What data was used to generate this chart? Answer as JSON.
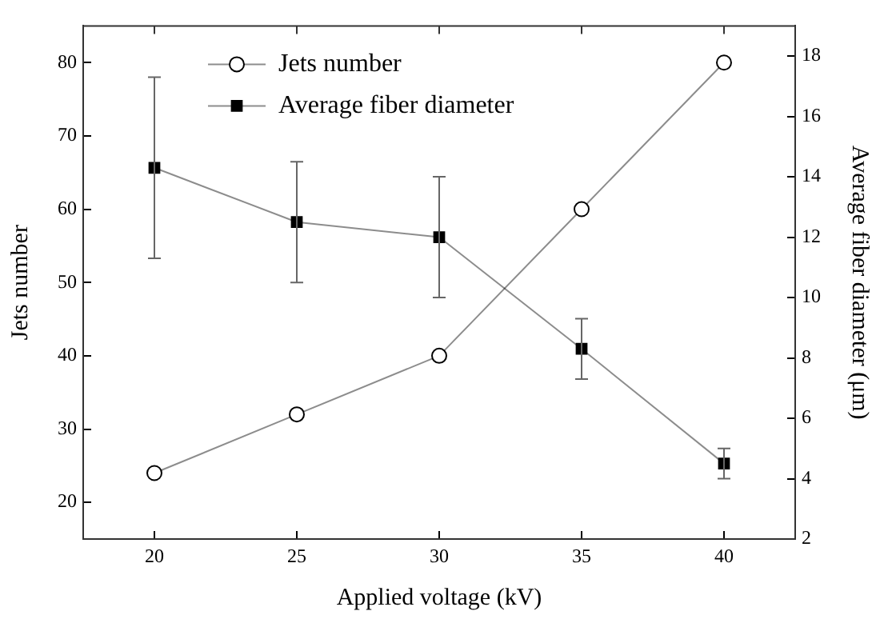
{
  "chart_data": {
    "type": "line",
    "x": [
      20,
      25,
      30,
      35,
      40
    ],
    "xlabel": "Applied voltage (kV)",
    "ylabel": "Jets number",
    "y2label": "Average fiber diameter (μm)",
    "series": [
      {
        "name": "Jets number",
        "color": "#000000",
        "marker": "circle",
        "values": [
          24,
          32,
          40,
          60,
          80
        ]
      },
      {
        "name": "Average fiber diameter",
        "color": "#000000",
        "marker": "square",
        "axis": "y2",
        "values": [
          14.3,
          12.5,
          12.0,
          8.3,
          4.5
        ],
        "errors": [
          3.0,
          2.0,
          2.0,
          1.0,
          0.5
        ]
      }
    ],
    "xlim": [
      17.5,
      42.5
    ],
    "xticks": [
      20,
      25,
      30,
      35,
      40
    ],
    "ylim": [
      15,
      85
    ],
    "yticks": [
      20,
      30,
      40,
      50,
      60,
      70,
      80
    ],
    "y2lim": [
      2,
      19
    ],
    "y2ticks": [
      2,
      4,
      6,
      8,
      10,
      12,
      14,
      16,
      18
    ],
    "grid": false,
    "legend": "top left"
  }
}
